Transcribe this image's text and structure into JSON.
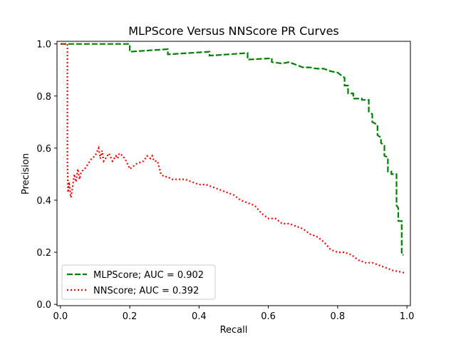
{
  "chart_data": {
    "type": "line",
    "title": "MLPScore Versus NNScore PR Curves",
    "xlabel": "Recall",
    "ylabel": "Precision",
    "xlim": [
      -0.01,
      1.01
    ],
    "ylim": [
      -0.005,
      1.01
    ],
    "x_ticks": [
      "0.0",
      "0.2",
      "0.4",
      "0.6",
      "0.8",
      "1.0"
    ],
    "y_ticks": [
      "0.0",
      "0.2",
      "0.4",
      "0.6",
      "0.8",
      "1.0"
    ],
    "grid": false,
    "legend_position": "lower-left",
    "series": [
      {
        "name": "MLPScore; AUC = 0.902",
        "color": "#008000",
        "dash": "dashed",
        "x": [
          0.0,
          0.2,
          0.2,
          0.31,
          0.31,
          0.43,
          0.43,
          0.54,
          0.54,
          0.61,
          0.61,
          0.64,
          0.66,
          0.68,
          0.7,
          0.72,
          0.74,
          0.76,
          0.78,
          0.8,
          0.81,
          0.82,
          0.82,
          0.83,
          0.83,
          0.845,
          0.845,
          0.87,
          0.87,
          0.89,
          0.89,
          0.9,
          0.9,
          0.915,
          0.915,
          0.925,
          0.925,
          0.935,
          0.935,
          0.945,
          0.945,
          0.955,
          0.955,
          0.97,
          0.97,
          0.975,
          0.975,
          0.985,
          0.985,
          0.99
        ],
        "y": [
          1.0,
          1.0,
          0.97,
          0.98,
          0.96,
          0.97,
          0.955,
          0.965,
          0.94,
          0.945,
          0.93,
          0.925,
          0.93,
          0.92,
          0.91,
          0.91,
          0.905,
          0.905,
          0.895,
          0.89,
          0.88,
          0.87,
          0.84,
          0.84,
          0.81,
          0.81,
          0.79,
          0.79,
          0.785,
          0.785,
          0.74,
          0.73,
          0.7,
          0.69,
          0.65,
          0.64,
          0.62,
          0.61,
          0.57,
          0.565,
          0.51,
          0.51,
          0.5,
          0.5,
          0.38,
          0.37,
          0.32,
          0.32,
          0.19,
          0.19
        ]
      },
      {
        "name": "NNScore; AUC = 0.392",
        "color": "#ff0000",
        "dash": "dotted",
        "x": [
          0.0,
          0.02,
          0.02,
          0.022,
          0.025,
          0.03,
          0.035,
          0.04,
          0.045,
          0.05,
          0.055,
          0.06,
          0.07,
          0.08,
          0.09,
          0.1,
          0.11,
          0.115,
          0.12,
          0.125,
          0.13,
          0.14,
          0.15,
          0.16,
          0.165,
          0.17,
          0.18,
          0.19,
          0.2,
          0.22,
          0.24,
          0.25,
          0.26,
          0.265,
          0.27,
          0.28,
          0.29,
          0.3,
          0.31,
          0.32,
          0.34,
          0.36,
          0.38,
          0.4,
          0.42,
          0.44,
          0.46,
          0.48,
          0.5,
          0.52,
          0.54,
          0.56,
          0.58,
          0.6,
          0.62,
          0.64,
          0.66,
          0.68,
          0.7,
          0.72,
          0.74,
          0.76,
          0.78,
          0.8,
          0.82,
          0.84,
          0.86,
          0.88,
          0.9,
          0.92,
          0.94,
          0.96,
          0.98,
          0.995
        ],
        "y": [
          1.0,
          1.0,
          0.55,
          0.43,
          0.47,
          0.41,
          0.45,
          0.5,
          0.47,
          0.52,
          0.48,
          0.51,
          0.52,
          0.54,
          0.56,
          0.57,
          0.6,
          0.56,
          0.59,
          0.55,
          0.56,
          0.58,
          0.55,
          0.57,
          0.56,
          0.58,
          0.57,
          0.55,
          0.52,
          0.54,
          0.55,
          0.57,
          0.56,
          0.57,
          0.55,
          0.55,
          0.5,
          0.49,
          0.49,
          0.48,
          0.48,
          0.48,
          0.47,
          0.46,
          0.46,
          0.45,
          0.44,
          0.43,
          0.42,
          0.4,
          0.39,
          0.38,
          0.35,
          0.33,
          0.33,
          0.31,
          0.31,
          0.3,
          0.29,
          0.27,
          0.26,
          0.24,
          0.21,
          0.2,
          0.2,
          0.19,
          0.17,
          0.16,
          0.16,
          0.15,
          0.14,
          0.13,
          0.125,
          0.12
        ]
      }
    ]
  }
}
